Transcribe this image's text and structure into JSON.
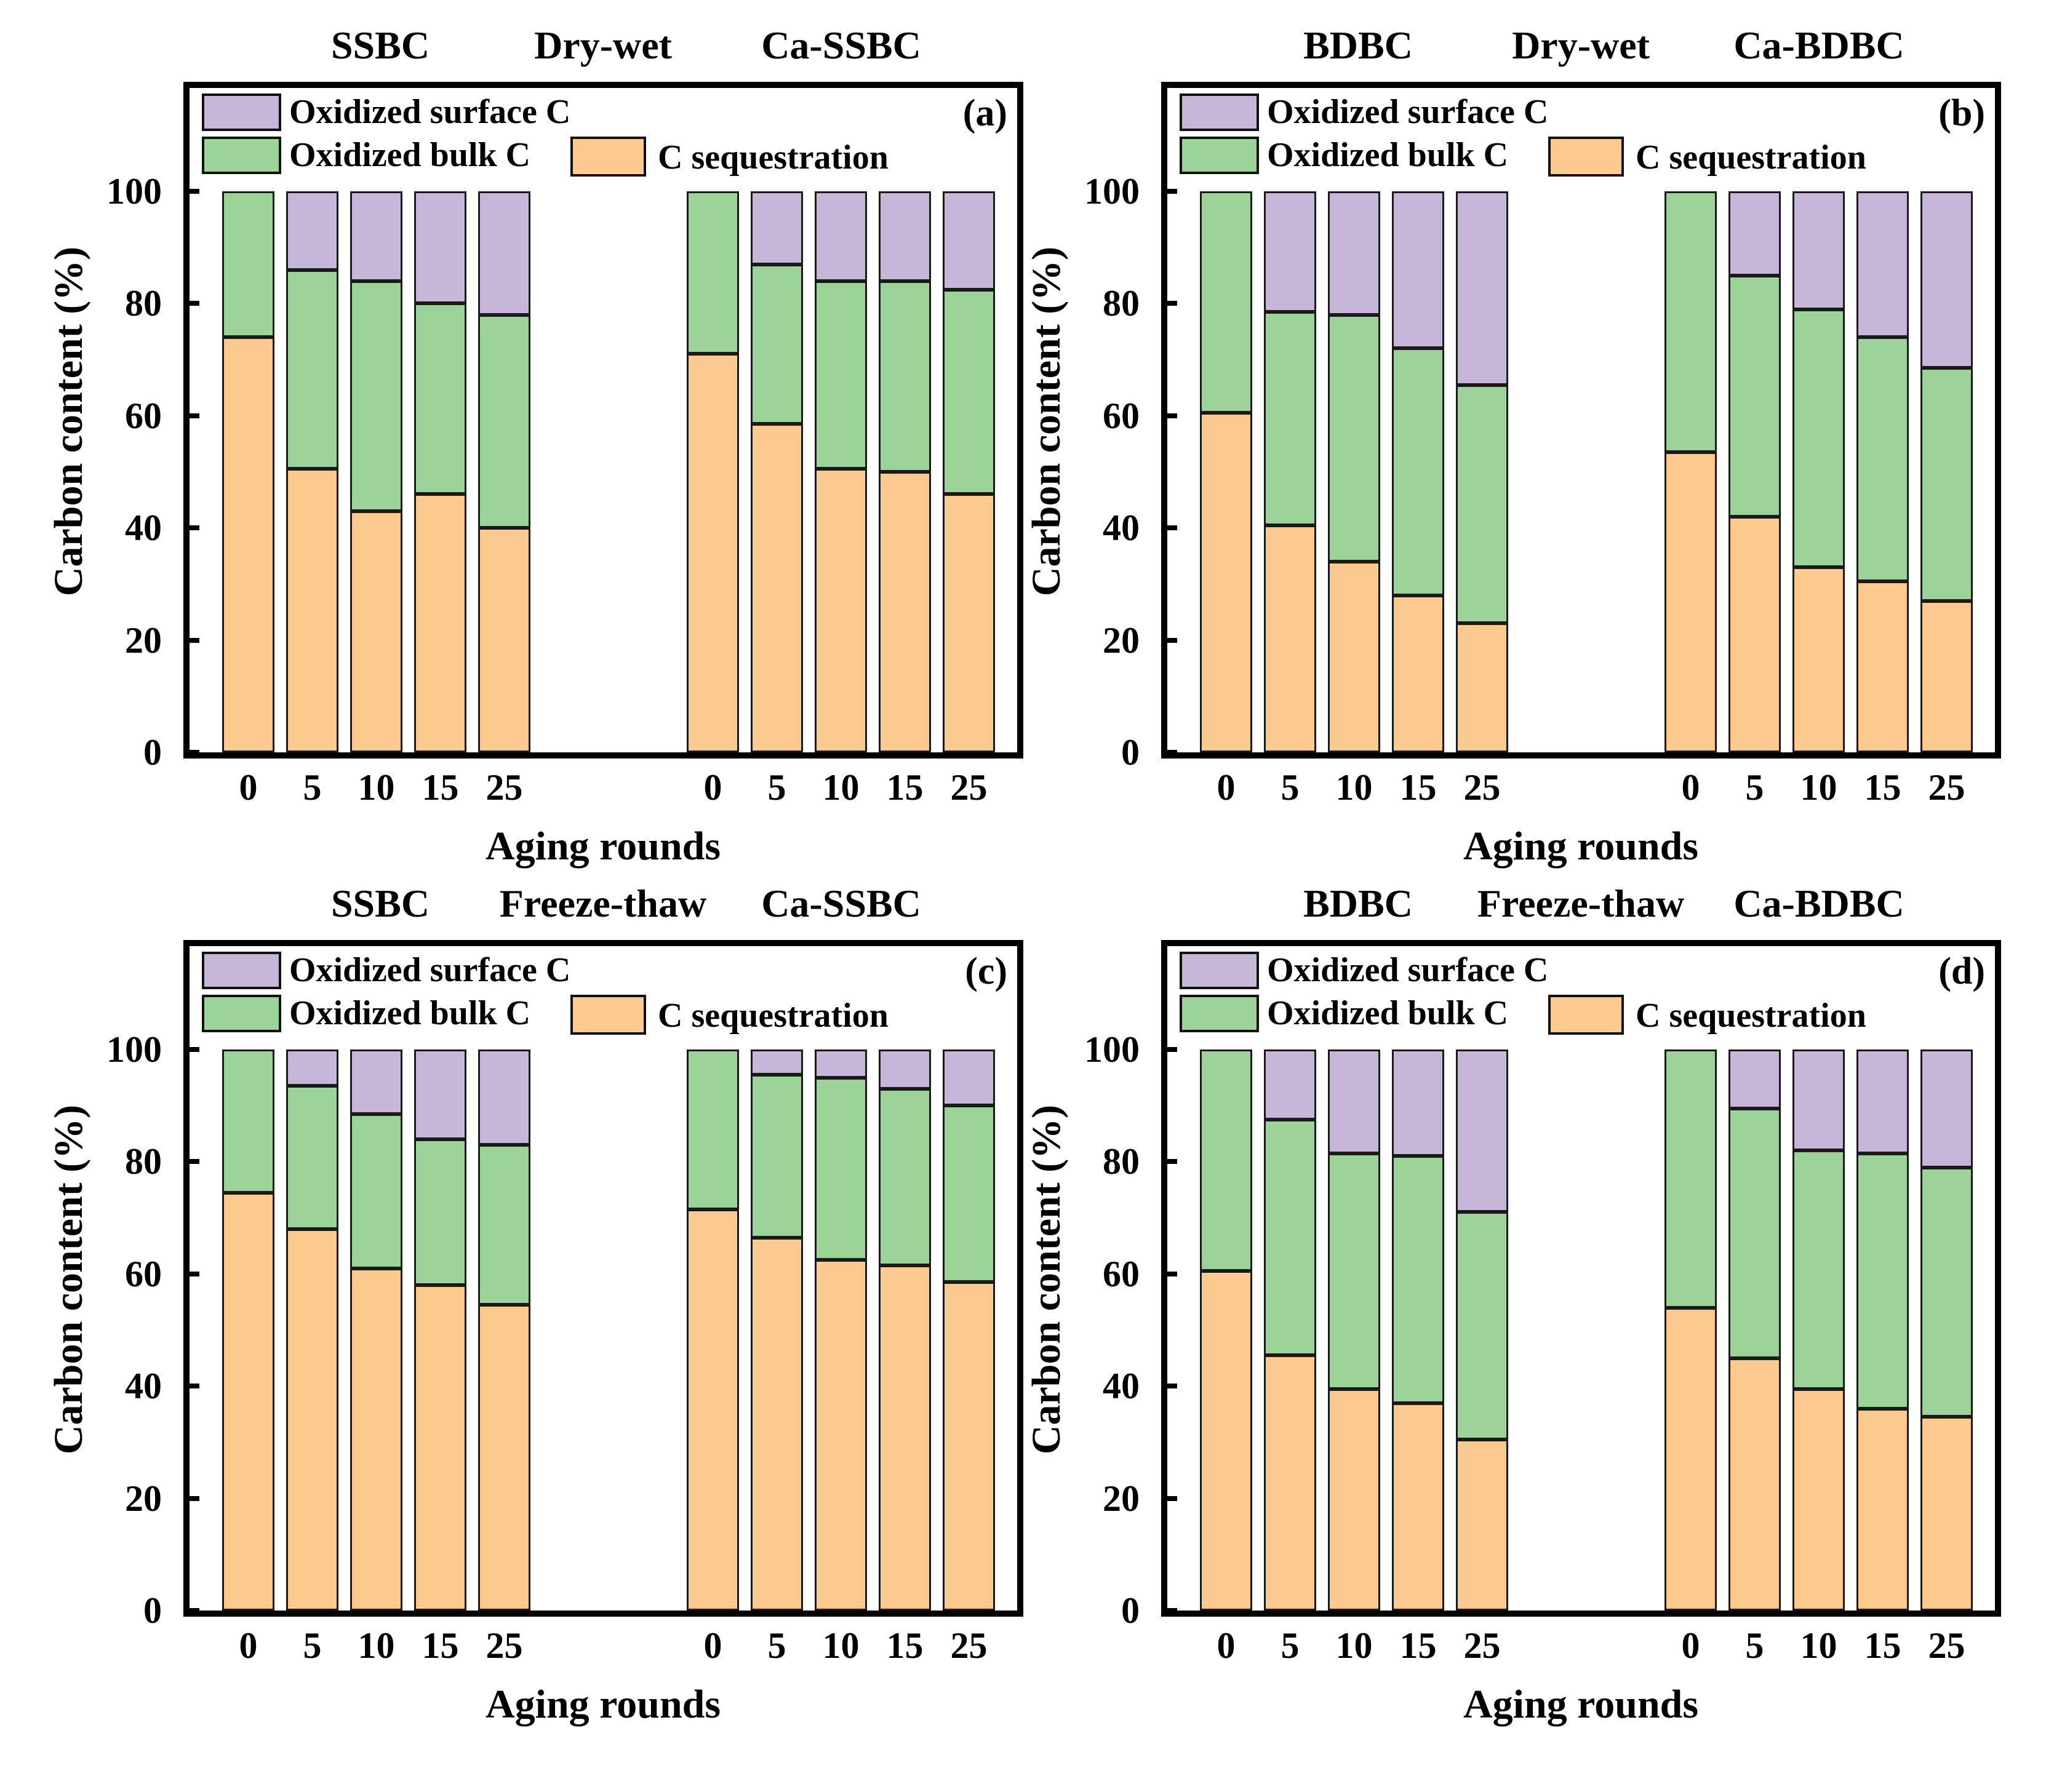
{
  "shared": {
    "ylabel": "Carbon content (%)",
    "xlabel": "Aging rounds",
    "ytick_values": [
      0,
      20,
      40,
      60,
      80,
      100
    ],
    "ytick_labels": [
      "0",
      "20",
      "40",
      "60",
      "80",
      "100"
    ],
    "xtick_labels": [
      "0",
      "5",
      "10",
      "15",
      "25"
    ],
    "legend": {
      "surface": {
        "label": "Oxidized surface C",
        "color": "#C6B6D9"
      },
      "bulk": {
        "label": "Oxidized bulk C",
        "color": "#9BD398"
      },
      "seq": {
        "label": "C sequestration",
        "color": "#FCCA8E"
      }
    },
    "colors": {
      "surface": "#C6B6D9",
      "bulk": "#9BD398",
      "seq": "#FCCA8E",
      "bar_border": "#1a1a1a",
      "axis": "#000000"
    }
  },
  "chart_data": {
    "type": "bar",
    "stacked": true,
    "unit": "%",
    "ylim": [
      0,
      100
    ],
    "grid": false,
    "legend_position": "top-left-inside",
    "categories": [
      "0",
      "5",
      "10",
      "15",
      "25"
    ],
    "panels": [
      {
        "letter": "(a)",
        "condition": "Dry-wet",
        "groups": [
          {
            "name": "SSBC",
            "series": [
              {
                "name": "C sequestration",
                "values": [
                  74,
                  50.5,
                  43,
                  46,
                  40
                ]
              },
              {
                "name": "Oxidized bulk C",
                "values": [
                  26,
                  35.5,
                  41,
                  34,
                  38
                ]
              },
              {
                "name": "Oxidized surface C",
                "values": [
                  0,
                  14,
                  16,
                  20,
                  22
                ]
              }
            ]
          },
          {
            "name": "Ca-SSBC",
            "series": [
              {
                "name": "C sequestration",
                "values": [
                  71,
                  58.5,
                  50.5,
                  50,
                  46
                ]
              },
              {
                "name": "Oxidized bulk C",
                "values": [
                  29,
                  28.5,
                  33.5,
                  34,
                  36.5
                ]
              },
              {
                "name": "Oxidized surface C",
                "values": [
                  0,
                  13,
                  16,
                  16,
                  17.5
                ]
              }
            ]
          }
        ]
      },
      {
        "letter": "(b)",
        "condition": "Dry-wet",
        "groups": [
          {
            "name": "BDBC",
            "series": [
              {
                "name": "C sequestration",
                "values": [
                  60.5,
                  40.5,
                  34,
                  28,
                  23
                ]
              },
              {
                "name": "Oxidized bulk C",
                "values": [
                  39.5,
                  38,
                  44,
                  44,
                  42.5
                ]
              },
              {
                "name": "Oxidized surface C",
                "values": [
                  0,
                  21.5,
                  22,
                  28,
                  34.5
                ]
              }
            ]
          },
          {
            "name": "Ca-BDBC",
            "series": [
              {
                "name": "C sequestration",
                "values": [
                  53.5,
                  42,
                  33,
                  30.5,
                  27
                ]
              },
              {
                "name": "Oxidized bulk C",
                "values": [
                  46.5,
                  43,
                  46,
                  43.5,
                  41.5
                ]
              },
              {
                "name": "Oxidized surface C",
                "values": [
                  0,
                  15,
                  21,
                  26,
                  31.5
                ]
              }
            ]
          }
        ]
      },
      {
        "letter": "(c)",
        "condition": "Freeze-thaw",
        "groups": [
          {
            "name": "SSBC",
            "series": [
              {
                "name": "C sequestration",
                "values": [
                  74.5,
                  68,
                  61,
                  58,
                  54.5
                ]
              },
              {
                "name": "Oxidized bulk C",
                "values": [
                  25.5,
                  25.5,
                  27.5,
                  26,
                  28.5
                ]
              },
              {
                "name": "Oxidized surface C",
                "values": [
                  0,
                  6.5,
                  11.5,
                  16,
                  17
                ]
              }
            ]
          },
          {
            "name": "Ca-SSBC",
            "series": [
              {
                "name": "C sequestration",
                "values": [
                  71.5,
                  66.5,
                  62.5,
                  61.5,
                  58.5
                ]
              },
              {
                "name": "Oxidized bulk C",
                "values": [
                  28.5,
                  29,
                  32.5,
                  31.5,
                  31.5
                ]
              },
              {
                "name": "Oxidized surface C",
                "values": [
                  0,
                  4.5,
                  5,
                  7,
                  10
                ]
              }
            ]
          }
        ]
      },
      {
        "letter": "(d)",
        "condition": "Freeze-thaw",
        "groups": [
          {
            "name": "BDBC",
            "series": [
              {
                "name": "C sequestration",
                "values": [
                  60.5,
                  45.5,
                  39.5,
                  37,
                  30.5
                ]
              },
              {
                "name": "Oxidized bulk C",
                "values": [
                  39.5,
                  42,
                  42,
                  44,
                  40.5
                ]
              },
              {
                "name": "Oxidized surface C",
                "values": [
                  0,
                  12.5,
                  18.5,
                  19,
                  29
                ]
              }
            ]
          },
          {
            "name": "Ca-BDBC",
            "series": [
              {
                "name": "C sequestration",
                "values": [
                  54,
                  45,
                  39.5,
                  36,
                  34.5
                ]
              },
              {
                "name": "Oxidized bulk C",
                "values": [
                  46,
                  44.5,
                  42.5,
                  45.5,
                  44.5
                ]
              },
              {
                "name": "Oxidized surface C",
                "values": [
                  0,
                  10.5,
                  18,
                  18.5,
                  21
                ]
              }
            ]
          }
        ]
      }
    ]
  }
}
